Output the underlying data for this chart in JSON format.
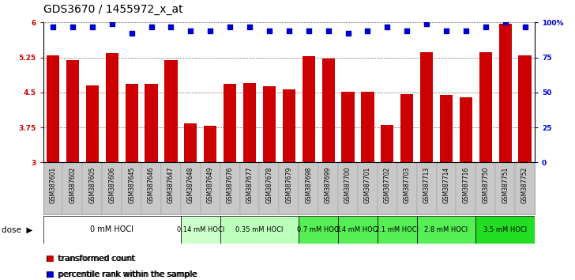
{
  "title": "GDS3670 / 1455972_x_at",
  "samples": [
    "GSM387601",
    "GSM387602",
    "GSM387605",
    "GSM387606",
    "GSM387645",
    "GSM387646",
    "GSM387647",
    "GSM387648",
    "GSM387649",
    "GSM387676",
    "GSM387677",
    "GSM387678",
    "GSM387679",
    "GSM387698",
    "GSM387699",
    "GSM387700",
    "GSM387701",
    "GSM387702",
    "GSM387703",
    "GSM387713",
    "GSM387714",
    "GSM387716",
    "GSM387750",
    "GSM387751",
    "GSM387752"
  ],
  "bar_values": [
    5.3,
    5.2,
    4.65,
    5.35,
    4.68,
    4.68,
    5.2,
    3.84,
    3.78,
    4.68,
    4.7,
    4.63,
    4.57,
    5.28,
    5.22,
    4.52,
    4.51,
    3.8,
    4.46,
    5.36,
    4.44,
    4.4,
    5.36,
    5.98,
    5.3
  ],
  "percentile_values": [
    97,
    97,
    97,
    99,
    92,
    97,
    97,
    94,
    94,
    97,
    97,
    94,
    94,
    94,
    94,
    92,
    94,
    97,
    94,
    99,
    94,
    94,
    97,
    100,
    97
  ],
  "groups": [
    {
      "label": "0 mM HOCl",
      "start": 0,
      "end": 7,
      "color": "#ffffff"
    },
    {
      "label": "0.14 mM HOCl",
      "start": 7,
      "end": 9,
      "color": "#ccffcc"
    },
    {
      "label": "0.35 mM HOCl",
      "start": 9,
      "end": 13,
      "color": "#bbffbb"
    },
    {
      "label": "0.7 mM HOCl",
      "start": 13,
      "end": 15,
      "color": "#55ee55"
    },
    {
      "label": "1.4 mM HOCl",
      "start": 15,
      "end": 17,
      "color": "#55ee55"
    },
    {
      "label": "2.1 mM HOCl",
      "start": 17,
      "end": 19,
      "color": "#55ee55"
    },
    {
      "label": "2.8 mM HOCl",
      "start": 19,
      "end": 22,
      "color": "#55ee55"
    },
    {
      "label": "3.5 mM HOCl",
      "start": 22,
      "end": 25,
      "color": "#22dd22"
    }
  ],
  "ylim": [
    3.0,
    6.0
  ],
  "yticks": [
    3.0,
    3.75,
    4.5,
    5.25,
    6.0
  ],
  "ytick_labels": [
    "3",
    "3.75",
    "4.5",
    "5.25",
    "6"
  ],
  "right_yticks": [
    0,
    25,
    50,
    75,
    100
  ],
  "right_ytick_labels": [
    "0",
    "25",
    "50",
    "75",
    "100%"
  ],
  "bar_color": "#cc0000",
  "dot_color": "#0000cc",
  "title_fontsize": 10,
  "tick_fontsize": 6.5,
  "label_fontsize": 5.5,
  "legend_fontsize": 7.5,
  "dose_fontsize": 7
}
